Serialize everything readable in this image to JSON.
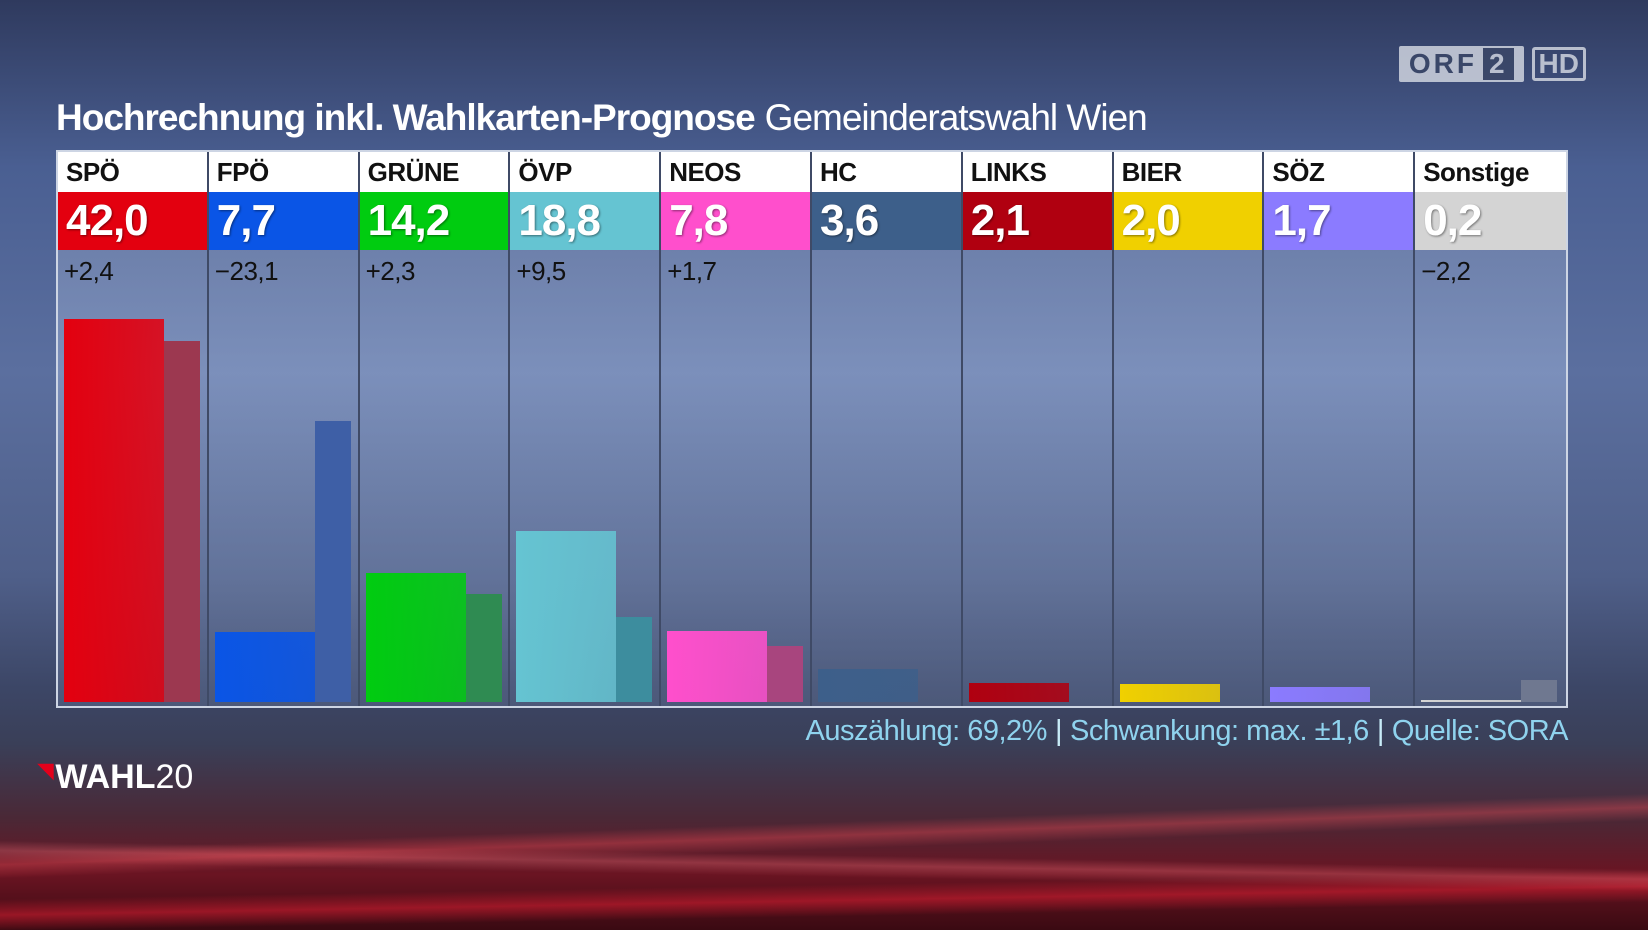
{
  "channel": {
    "logo_text": "ORF",
    "logo_number": "2",
    "hd_label": "HD"
  },
  "title": {
    "main": "Hochrechnung inkl. Wahlkarten-Prognose",
    "sub": "Gemeinderatswahl Wien"
  },
  "chart_data": {
    "type": "bar",
    "title": "Hochrechnung inkl. Wahlkarten-Prognose Gemeinderatswahl Wien",
    "categories": [
      "SPÖ",
      "FPÖ",
      "GRÜNE",
      "ÖVP",
      "NEOS",
      "HC",
      "LINKS",
      "BIER",
      "SÖZ",
      "Sonstige"
    ],
    "value_labels": [
      "42,0",
      "7,7",
      "14,2",
      "18,8",
      "7,8",
      "3,6",
      "2,1",
      "2,0",
      "1,7",
      "0,2"
    ],
    "diff_labels": [
      "+2,4",
      "−23,1",
      "+2,3",
      "+9,5",
      "+1,7",
      "",
      "",
      "",
      "",
      "−2,2"
    ],
    "series": [
      {
        "values": [
          42.0,
          7.7,
          14.2,
          18.8,
          7.8,
          3.6,
          2.1,
          2.0,
          1.7,
          0.2
        ]
      },
      {
        "values": [
          39.6,
          30.8,
          11.9,
          9.3,
          6.1,
          null,
          null,
          null,
          null,
          2.4
        ]
      }
    ],
    "colors": [
      "#e3000f",
      "#0a55e6",
      "#00cc10",
      "#65c4d2",
      "#ff4fcc",
      "#3d5f8a",
      "#b00010",
      "#f0d000",
      "#8b7bff",
      "#d4d4d4"
    ],
    "prev_colors": [
      "#9c3850",
      "#3e5fa6",
      "#2f8b52",
      "#3d8d9e",
      "#a8457e",
      null,
      null,
      null,
      null,
      "#6f7890"
    ],
    "ylim": [
      0,
      45
    ]
  },
  "footer": {
    "count": "Auszählung: 69,2%",
    "margin": "Schwankung: max. ±1,6",
    "source": "Quelle: SORA",
    "separator": "|"
  },
  "brand": {
    "text": "WAHL",
    "number": "20"
  }
}
